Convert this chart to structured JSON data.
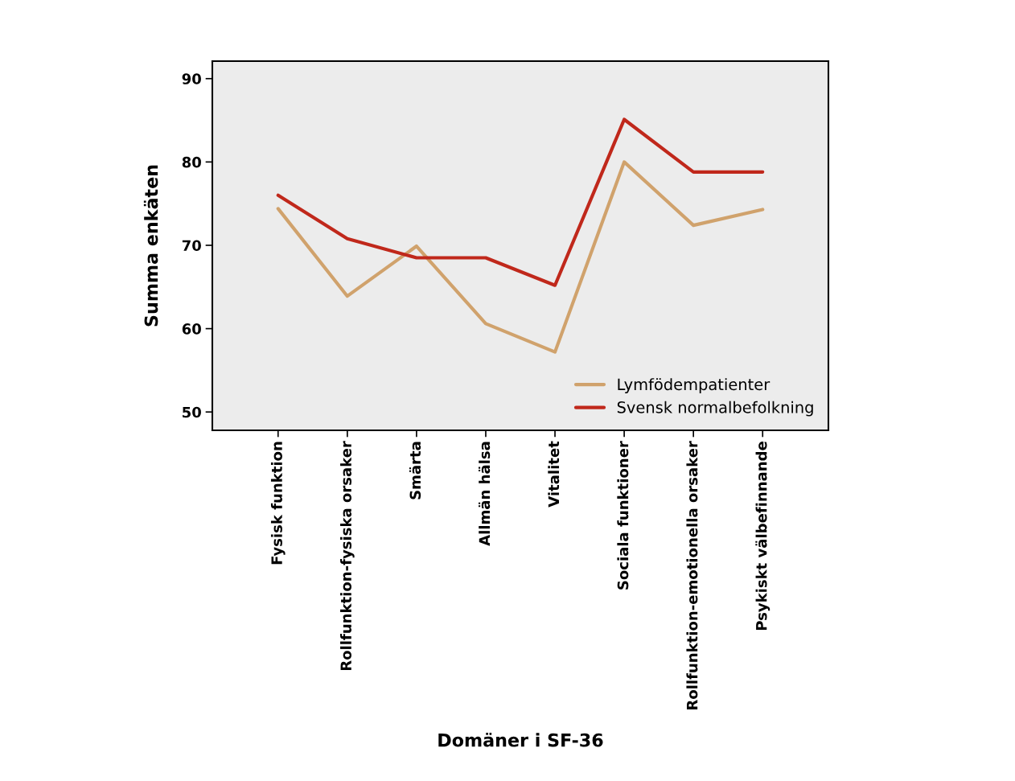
{
  "chart_data": {
    "type": "line",
    "xlabel": "Domäner i SF-36",
    "ylabel": "Summa enkäten",
    "categories": [
      "Fysisk funktion",
      "Rollfunktion-fysiska orsaker",
      "Smärta",
      "Allmän hälsa",
      "Vitalitet",
      "Sociala funktioner",
      "Rollfunktion-emotionella orsaker",
      "Psykiskt välbefinnande"
    ],
    "series": [
      {
        "name": "Lymfödempatienter",
        "color": "#d0a26c",
        "values": [
          74.4,
          63.9,
          69.9,
          60.6,
          57.2,
          80.0,
          72.4,
          74.3
        ]
      },
      {
        "name": "Svensk normalbefolkning",
        "color": "#c0281b",
        "values": [
          76.0,
          70.8,
          68.5,
          68.5,
          65.2,
          85.1,
          78.8,
          78.8
        ]
      }
    ],
    "ylim": [
      47.8,
      92.1
    ],
    "yticks": [
      50,
      60,
      70,
      80,
      90
    ],
    "grid": false,
    "legend": "bottom right",
    "marker": "none",
    "line_style": "solid"
  }
}
